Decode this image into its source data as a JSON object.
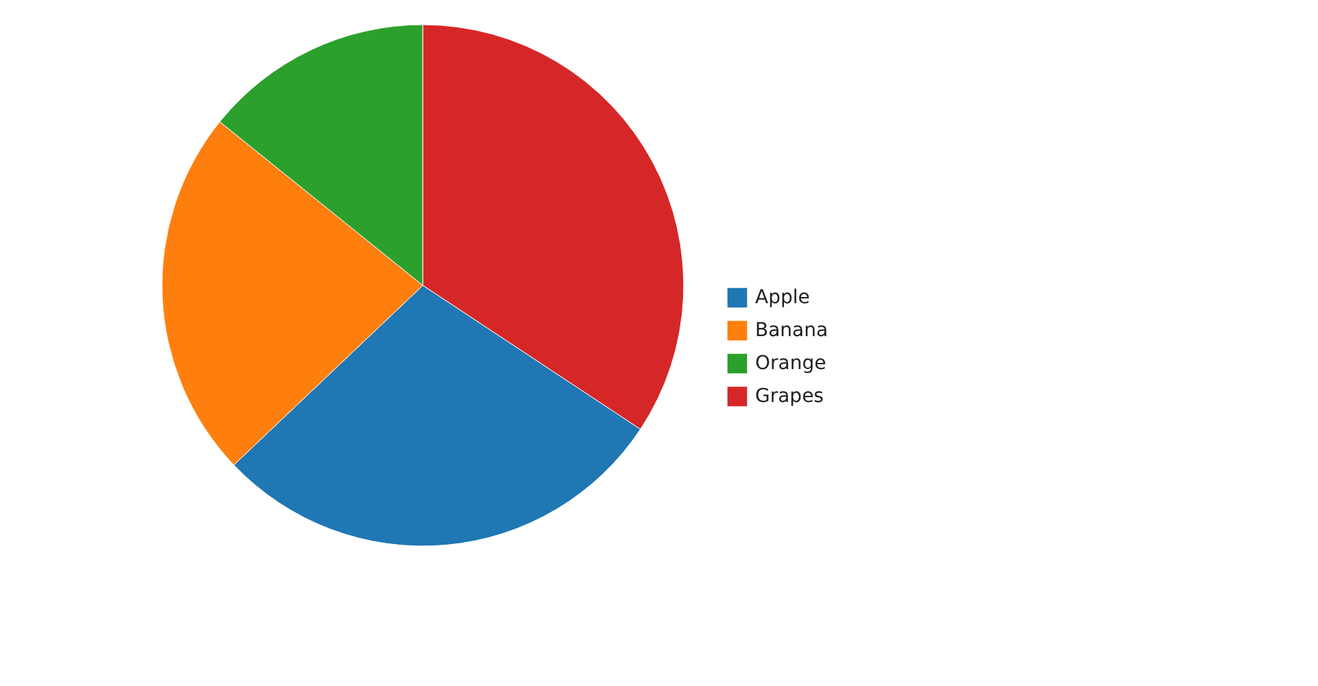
{
  "chart_data": {
    "type": "pie",
    "categories": [
      "Apple",
      "Banana",
      "Orange",
      "Grapes"
    ],
    "values": [
      28.6,
      22.9,
      14.2,
      34.3
    ],
    "colors": [
      "#1f77b4",
      "#ff7f0e",
      "#2ca02c",
      "#d62728"
    ],
    "legend": "right"
  }
}
